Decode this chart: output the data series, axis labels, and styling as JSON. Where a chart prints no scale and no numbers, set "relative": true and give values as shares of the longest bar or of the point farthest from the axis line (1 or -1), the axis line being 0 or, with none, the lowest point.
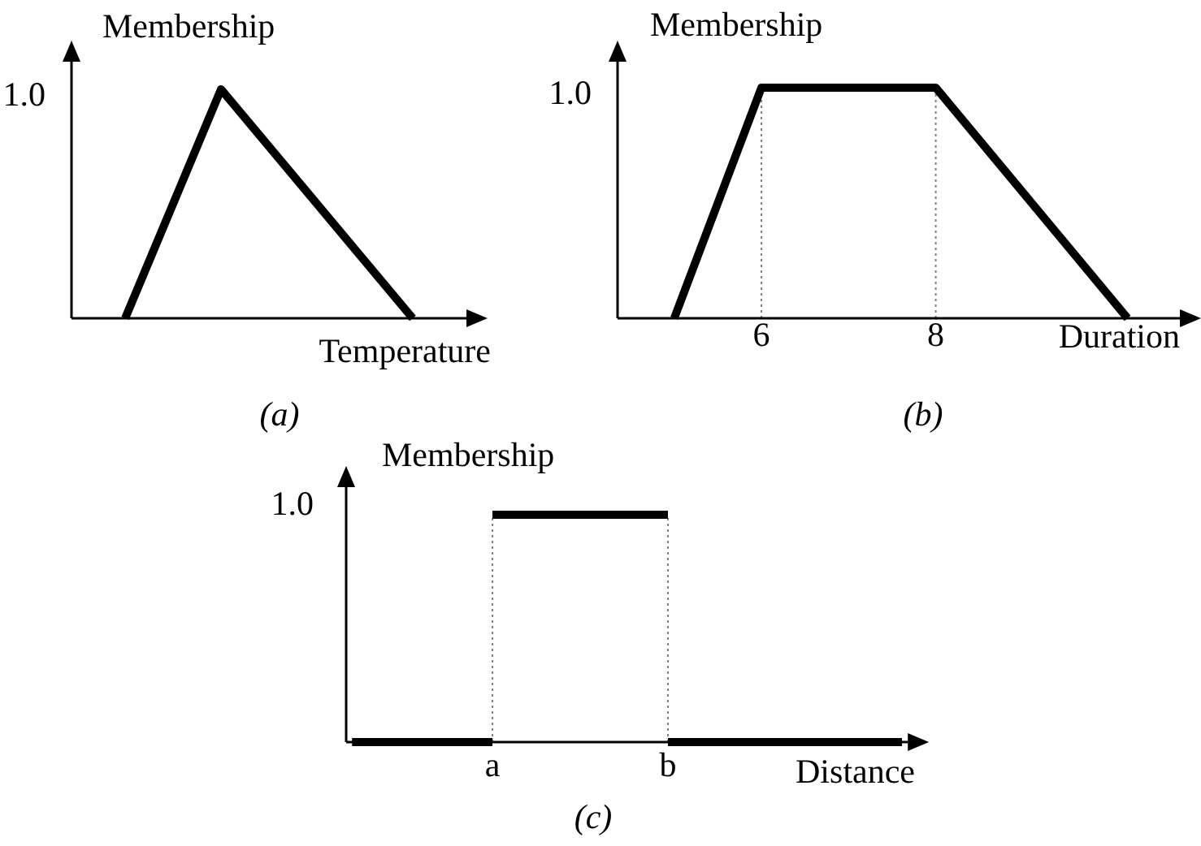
{
  "chart_data": [
    {
      "type": "line",
      "title": "(a)",
      "xlabel": "Temperature",
      "ylabel": "Membership",
      "relative": true,
      "categories": [
        null,
        null,
        null,
        null
      ],
      "series": [
        {
          "color": "#000000",
          "values": [
            0,
            1,
            0.5,
            0
          ]
        }
      ],
      "annotations": [
        "1.0"
      ]
    },
    {
      "type": "line",
      "title": "(b)",
      "xlabel": "Duration",
      "ylabel": "Membership",
      "relative": true,
      "x": [
        5,
        6,
        8,
        10.2
      ],
      "xlim": [
        4.35,
        10.8
      ],
      "xticks": [
        6,
        8
      ],
      "series": [
        {
          "color": "#000000",
          "values": [
            0,
            1,
            1,
            0
          ]
        }
      ],
      "ref_lines": [
        {
          "axis": "x",
          "value": 6,
          "color": "#808080",
          "line_style": "dotted"
        },
        {
          "axis": "x",
          "value": 8,
          "color": "#808080",
          "line_style": "dotted"
        }
      ],
      "annotations": [
        "1.0"
      ]
    },
    {
      "type": "step",
      "title": "(c)",
      "xlabel": "Distance",
      "ylabel": "Membership",
      "relative": true,
      "categories": [
        null,
        null,
        null,
        null,
        null,
        null,
        null,
        null,
        null,
        null,
        null,
        null,
        "a",
        null,
        null,
        null,
        null,
        null,
        null,
        null,
        null,
        null,
        null,
        null,
        null,
        null,
        null,
        "b",
        null,
        null,
        null,
        null,
        null,
        null,
        null,
        null,
        null,
        null,
        null,
        null,
        null,
        null,
        null,
        null,
        null,
        null,
        null,
        null
      ],
      "series": [
        {
          "color": "#000000",
          "values": [
            0,
            0,
            0,
            0,
            0,
            0,
            0,
            0,
            0,
            0,
            0,
            0,
            1,
            1,
            1,
            1,
            1,
            1,
            1,
            1,
            1,
            1,
            1,
            1,
            1,
            1,
            1,
            0,
            0,
            0,
            0,
            0,
            0,
            0,
            0,
            0,
            0,
            0,
            0,
            0,
            0,
            0,
            0,
            0,
            0,
            0,
            0,
            0
          ]
        }
      ],
      "ref_lines": [
        {
          "axis": "x",
          "value": "a",
          "color": "#808080",
          "line_style": "dotted"
        },
        {
          "axis": "x",
          "value": "b",
          "color": "#808080",
          "line_style": "dotted"
        }
      ],
      "annotations": [
        "1.0"
      ]
    }
  ]
}
